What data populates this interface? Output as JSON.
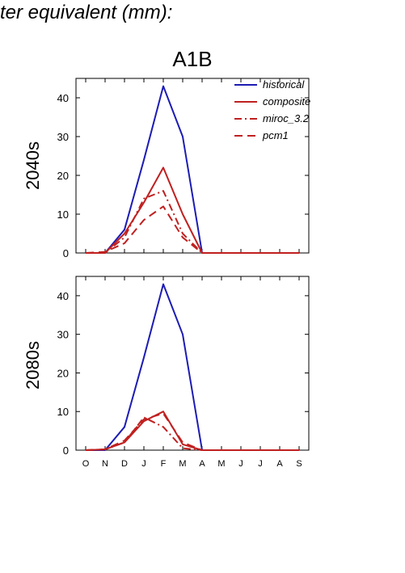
{
  "header": {
    "title": "ter equivalent (mm):"
  },
  "chart_data": {
    "type": "line",
    "title": "A1B",
    "categories": [
      "O",
      "N",
      "D",
      "J",
      "F",
      "M",
      "A",
      "M",
      "J",
      "J",
      "A",
      "S"
    ],
    "ylim": [
      0,
      45
    ],
    "yticks": [
      0,
      10,
      20,
      30,
      40
    ],
    "legend": {
      "placement": "top-right",
      "entries": [
        "historical",
        "composite",
        "miroc_3.2",
        "pcm1"
      ]
    },
    "styles": {
      "historical": {
        "color": "#1c1cb4",
        "dash": ""
      },
      "composite": {
        "color": "#c02020",
        "dash": ""
      },
      "miroc_3.2": {
        "color": "#c02020",
        "dash": "dashdot"
      },
      "pcm1": {
        "color": "#c02020",
        "dash": "dash"
      }
    },
    "panels": [
      {
        "ylabel": "2040s",
        "series": [
          {
            "name": "historical",
            "values": [
              0,
              0,
              6,
              24,
              43,
              30,
              0,
              0,
              0,
              0,
              0,
              0
            ]
          },
          {
            "name": "composite",
            "values": [
              0,
              0,
              5,
              13,
              22,
              10,
              0,
              0,
              0,
              0,
              0,
              0
            ]
          },
          {
            "name": "miroc_3.2",
            "values": [
              0,
              0,
              4,
              14,
              16,
              5,
              0,
              0,
              0,
              0,
              0,
              0
            ]
          },
          {
            "name": "pcm1",
            "values": [
              0,
              0.3,
              2.5,
              8.5,
              12,
              4,
              0,
              0,
              0,
              0,
              0,
              0
            ]
          }
        ]
      },
      {
        "ylabel": "2080s",
        "series": [
          {
            "name": "historical",
            "values": [
              0,
              0,
              6,
              24,
              43,
              30,
              0,
              0,
              0,
              0,
              0,
              0
            ]
          },
          {
            "name": "composite",
            "values": [
              0,
              0.2,
              2,
              7.5,
              10,
              1.5,
              0,
              0,
              0,
              0,
              0,
              0
            ]
          },
          {
            "name": "miroc_3.2",
            "values": [
              0,
              0.2,
              2,
              8.5,
              6,
              0.5,
              0,
              0,
              0,
              0,
              0,
              0
            ]
          },
          {
            "name": "pcm1",
            "values": [
              0,
              0.2,
              2.5,
              8,
              9.5,
              2,
              0,
              0,
              0,
              0,
              0,
              0
            ]
          }
        ]
      }
    ]
  }
}
